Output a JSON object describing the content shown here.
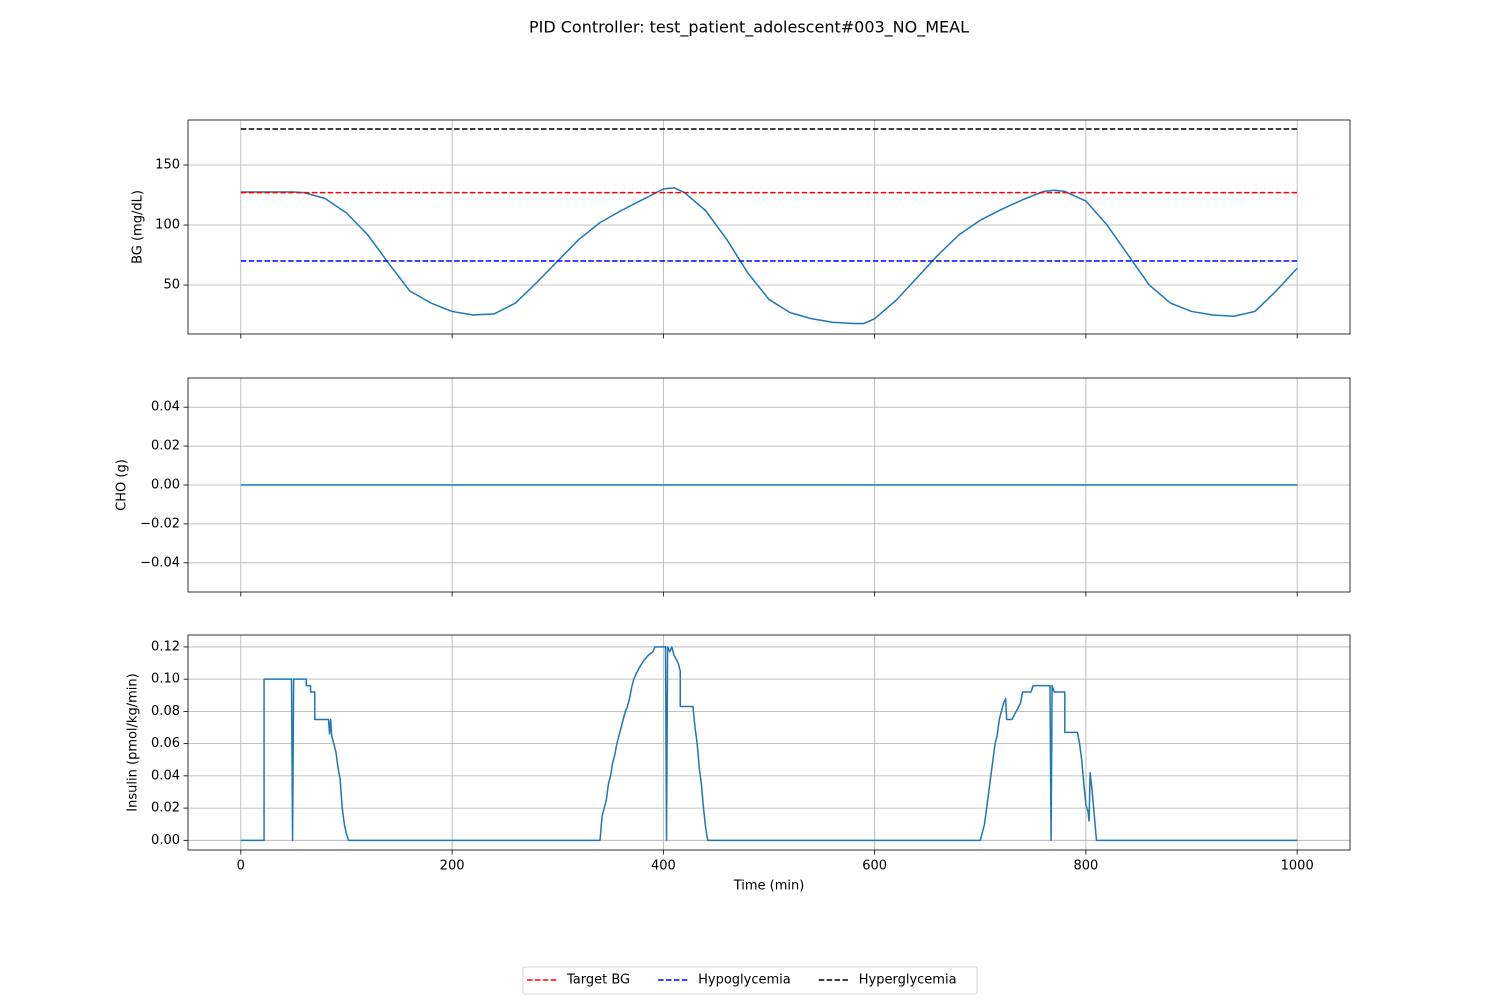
{
  "title": "PID Controller: test_patient_adolescent#003_NO_MEAL",
  "legend": "lower center",
  "chart_data": [
    {
      "type": "line",
      "ylabel": "BG (mg/dL)",
      "grid": true,
      "xticklabels": false,
      "xlim": [
        -50,
        1050
      ],
      "xticks": [
        0,
        200,
        400,
        600,
        800,
        1000
      ],
      "ylim": [
        9.2,
        187.5
      ],
      "yticks": [
        50,
        100,
        150
      ],
      "series": [
        {
          "color": "#1f77b4",
          "x": [
            0,
            50,
            60,
            80,
            100,
            120,
            140,
            160,
            180,
            200,
            220,
            240,
            260,
            280,
            300,
            320,
            340,
            360,
            380,
            400,
            410,
            420,
            440,
            460,
            480,
            500,
            520,
            540,
            560,
            580,
            590,
            600,
            620,
            640,
            660,
            680,
            700,
            720,
            740,
            760,
            770,
            780,
            800,
            820,
            840,
            860,
            880,
            900,
            920,
            940,
            960,
            980,
            1000
          ],
          "values": [
            127.5,
            127.5,
            127,
            122,
            110,
            92,
            68,
            45,
            35,
            28,
            25,
            26,
            35,
            52,
            70,
            88,
            102,
            112,
            121,
            130,
            131,
            127,
            112,
            88,
            60,
            38,
            27,
            22,
            19,
            18,
            18,
            22,
            37,
            56,
            75,
            92,
            104,
            113,
            121,
            128,
            129,
            128,
            120,
            100,
            75,
            50,
            35,
            28,
            25,
            24,
            28,
            45,
            64
          ]
        },
        {
          "name": "Target BG",
          "color": "#ff0000",
          "linestyle": "dashed",
          "x": [
            0,
            1000
          ],
          "values": [
            127,
            127
          ]
        },
        {
          "name": "Hypoglycemia",
          "color": "#0000ff",
          "linestyle": "dashed",
          "x": [
            0,
            1000
          ],
          "values": [
            70,
            70
          ]
        },
        {
          "name": "Hyperglycemia",
          "color": "#000000",
          "linestyle": "dashed",
          "x": [
            0,
            1000
          ],
          "values": [
            180,
            180
          ]
        }
      ]
    },
    {
      "type": "line",
      "ylabel": "CHO (g)",
      "grid": true,
      "xticklabels": false,
      "xlim": [
        -50,
        1050
      ],
      "xticks": [
        0,
        200,
        400,
        600,
        800,
        1000
      ],
      "ylim": [
        -0.055,
        0.055
      ],
      "yticks": [
        {
          "value": -0.04,
          "label": "−0.04"
        },
        {
          "value": -0.02,
          "label": "−0.02"
        },
        {
          "value": 0,
          "label": "0.00"
        },
        0.02,
        0.04
      ],
      "series": [
        {
          "color": "#1f77b4",
          "x": [
            0,
            1000
          ],
          "values": [
            0,
            0
          ]
        }
      ]
    },
    {
      "type": "line",
      "ylabel": "Insulin (pmol/kg/min)",
      "xlabel": "Time (min)",
      "grid": true,
      "xlim": [
        -50,
        1050
      ],
      "xticks": [
        0,
        200,
        400,
        600,
        800,
        1000
      ],
      "ylim": [
        -0.006,
        0.1274
      ],
      "yticks": [
        {
          "value": 0,
          "label": "0.00"
        },
        0.02,
        0.04,
        0.06,
        0.08,
        {
          "value": 0.1,
          "label": "0.10"
        },
        0.12
      ],
      "series": [
        {
          "color": "#1f77b4",
          "x": [
            0,
            22,
            22,
            48,
            49,
            50,
            62,
            62,
            66,
            66,
            70,
            70,
            83,
            84,
            85,
            86,
            88,
            90,
            92,
            94,
            96,
            98,
            100,
            102,
            340,
            342,
            344,
            346,
            348,
            350,
            352,
            354,
            356,
            358,
            360,
            362,
            364,
            366,
            368,
            370,
            372,
            374,
            378,
            382,
            386,
            390,
            392,
            402,
            403,
            404,
            406,
            408,
            410,
            414,
            416,
            416,
            428,
            430,
            432,
            434,
            436,
            438,
            440,
            442,
            700,
            702,
            704,
            706,
            708,
            710,
            712,
            714,
            716,
            718,
            720,
            722,
            724,
            725,
            730,
            734,
            738,
            740,
            748,
            750,
            766,
            767,
            768,
            770,
            780,
            780,
            792,
            794,
            796,
            798,
            800,
            802,
            803,
            804,
            806,
            808,
            810,
            1000
          ],
          "values": [
            0,
            0,
            0.1,
            0.1,
            0,
            0.1,
            0.1,
            0.096,
            0.096,
            0.092,
            0.092,
            0.075,
            0.075,
            0.066,
            0.075,
            0.065,
            0.06,
            0.055,
            0.045,
            0.038,
            0.02,
            0.01,
            0.004,
            0,
            0,
            0.015,
            0.02,
            0.025,
            0.035,
            0.04,
            0.048,
            0.053,
            0.06,
            0.065,
            0.07,
            0.075,
            0.08,
            0.083,
            0.088,
            0.095,
            0.1,
            0.103,
            0.108,
            0.112,
            0.115,
            0.117,
            0.12,
            0.12,
            0,
            0.12,
            0.117,
            0.12,
            0.115,
            0.11,
            0.105,
            0.083,
            0.083,
            0.07,
            0.06,
            0.045,
            0.035,
            0.02,
            0.008,
            0,
            0,
            0.005,
            0.01,
            0.02,
            0.03,
            0.04,
            0.05,
            0.06,
            0.065,
            0.075,
            0.08,
            0.085,
            0.088,
            0.075,
            0.075,
            0.08,
            0.085,
            0.092,
            0.092,
            0.096,
            0.096,
            0,
            0.096,
            0.092,
            0.092,
            0.067,
            0.067,
            0.06,
            0.05,
            0.035,
            0.022,
            0.018,
            0.012,
            0.042,
            0.03,
            0.015,
            0,
            0
          ]
        }
      ]
    }
  ]
}
